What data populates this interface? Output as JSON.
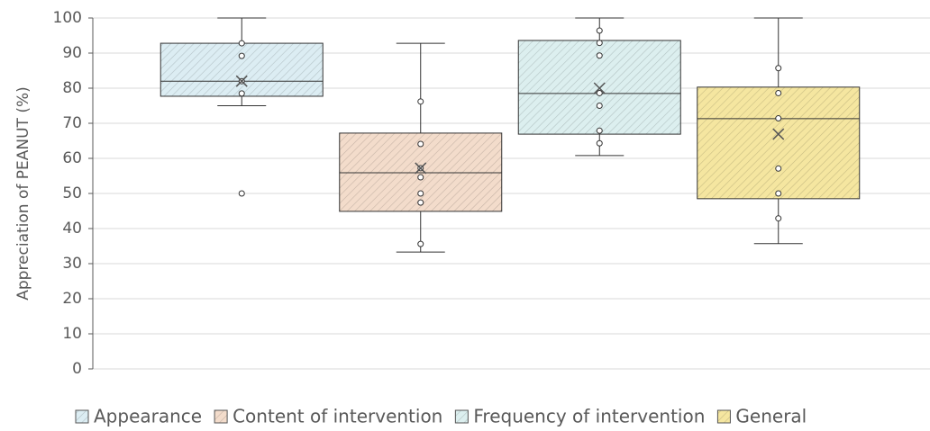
{
  "chart_data": {
    "type": "box",
    "y_label": "Appreciation of PEANUT (%)",
    "ylim": [
      0,
      100
    ],
    "yticks": [
      0,
      10,
      20,
      30,
      40,
      50,
      60,
      70,
      80,
      90,
      100
    ],
    "grid": true,
    "legend": "bottom",
    "series": [
      {
        "name": "Appearance",
        "color": "#dcedf3",
        "whisker_low": 75,
        "q1": 77.7,
        "median": 82,
        "q3": 92.8,
        "whisker_high": 100,
        "mean": 82,
        "points": [
          92.8,
          89.2,
          82,
          78.5,
          50
        ]
      },
      {
        "name": "Content of intervention",
        "color": "#f3dccb",
        "whisker_low": 33.3,
        "q1": 44.9,
        "median": 55.9,
        "q3": 67.2,
        "whisker_high": 92.8,
        "mean": 57.2,
        "points": [
          76.2,
          64.1,
          57.2,
          54.6,
          50,
          47.4,
          35.6
        ]
      },
      {
        "name": "Frequency of intervention",
        "color": "#dcefef",
        "whisker_low": 60.8,
        "q1": 66.9,
        "median": 78.5,
        "q3": 93.6,
        "whisker_high": 100,
        "mean": 80,
        "points": [
          96.4,
          92.9,
          89.3,
          78.6,
          75,
          67.9,
          64.3
        ]
      },
      {
        "name": "General",
        "color": "#f5e6a0",
        "whisker_low": 35.7,
        "q1": 48.5,
        "median": 71.3,
        "q3": 80.3,
        "whisker_high": 100,
        "mean": 66.9,
        "points": [
          85.7,
          78.6,
          71.4,
          57.1,
          50,
          42.9
        ]
      }
    ]
  }
}
